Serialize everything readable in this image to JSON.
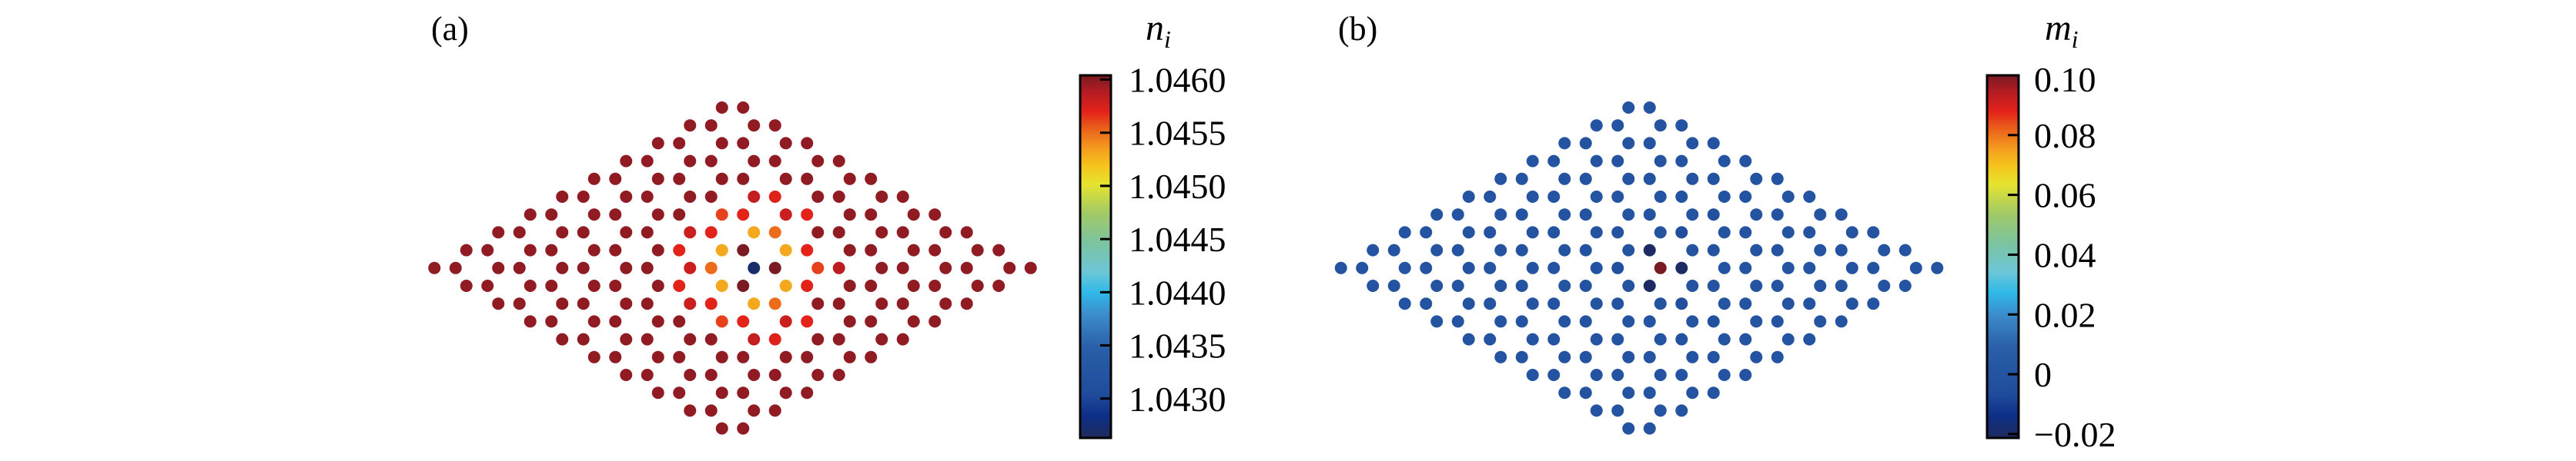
{
  "chart_data": [
    {
      "type": "heatmap",
      "panel_label": "(a)",
      "colorbar_title": {
        "base": "n",
        "sub": "i"
      },
      "lattice": "honeycomb",
      "rows": 19,
      "range": [
        1.04263,
        1.04604
      ],
      "ticks": [
        {
          "value": 1.046,
          "label": "1.0460"
        },
        {
          "value": 1.0455,
          "label": "1.0455"
        },
        {
          "value": 1.045,
          "label": "1.0450"
        },
        {
          "value": 1.0445,
          "label": "1.0445"
        },
        {
          "value": 1.044,
          "label": "1.0440"
        },
        {
          "value": 1.0435,
          "label": "1.0435"
        },
        {
          "value": 1.043,
          "label": "1.0430"
        }
      ],
      "default_value": 1.04598,
      "sites": [
        {
          "row": 9,
          "pair": 4,
          "side": 0,
          "value": 1.0458
        },
        {
          "row": 9,
          "pair": 4,
          "side": 1,
          "value": 1.0455
        },
        {
          "row": 9,
          "pair": 5,
          "side": 0,
          "value": 1.0427
        },
        {
          "row": 9,
          "pair": 5,
          "side": 1,
          "value": 1.0461
        },
        {
          "row": 9,
          "pair": 6,
          "side": 0,
          "value": 1.04562
        },
        {
          "row": 9,
          "pair": 6,
          "side": 1,
          "value": 1.04585
        },
        {
          "row": 8,
          "pair": 3,
          "side": 1,
          "value": 1.0457
        },
        {
          "row": 8,
          "pair": 4,
          "side": 0,
          "value": 1.0453
        },
        {
          "row": 8,
          "pair": 4,
          "side": 1,
          "value": 1.0461
        },
        {
          "row": 8,
          "pair": 5,
          "side": 0,
          "value": 1.0453
        },
        {
          "row": 8,
          "pair": 5,
          "side": 1,
          "value": 1.0457
        },
        {
          "row": 10,
          "pair": 3,
          "side": 1,
          "value": 1.0457
        },
        {
          "row": 10,
          "pair": 4,
          "side": 0,
          "value": 1.0453
        },
        {
          "row": 10,
          "pair": 4,
          "side": 1,
          "value": 1.0461
        },
        {
          "row": 10,
          "pair": 5,
          "side": 0,
          "value": 1.0453
        },
        {
          "row": 10,
          "pair": 5,
          "side": 1,
          "value": 1.0457
        },
        {
          "row": 7,
          "pair": 3,
          "side": 0,
          "value": 1.0458
        },
        {
          "row": 7,
          "pair": 3,
          "side": 1,
          "value": 1.0457
        },
        {
          "row": 7,
          "pair": 4,
          "side": 0,
          "value": 1.0453
        },
        {
          "row": 7,
          "pair": 4,
          "side": 1,
          "value": 1.0455
        },
        {
          "row": 11,
          "pair": 3,
          "side": 0,
          "value": 1.0458
        },
        {
          "row": 11,
          "pair": 3,
          "side": 1,
          "value": 1.0457
        },
        {
          "row": 11,
          "pair": 4,
          "side": 0,
          "value": 1.0453
        },
        {
          "row": 11,
          "pair": 4,
          "side": 1,
          "value": 1.0455
        },
        {
          "row": 6,
          "pair": 3,
          "side": 0,
          "value": 1.04562
        },
        {
          "row": 6,
          "pair": 3,
          "side": 1,
          "value": 1.0457
        },
        {
          "row": 6,
          "pair": 4,
          "side": 0,
          "value": 1.0458
        },
        {
          "row": 6,
          "pair": 4,
          "side": 1,
          "value": 1.0457
        },
        {
          "row": 12,
          "pair": 3,
          "side": 0,
          "value": 1.04562
        },
        {
          "row": 12,
          "pair": 3,
          "side": 1,
          "value": 1.0457
        },
        {
          "row": 12,
          "pair": 4,
          "side": 0,
          "value": 1.0458
        },
        {
          "row": 12,
          "pair": 4,
          "side": 1,
          "value": 1.0457
        },
        {
          "row": 5,
          "pair": 3,
          "side": 0,
          "value": 1.04582
        },
        {
          "row": 5,
          "pair": 3,
          "side": 1,
          "value": 1.04572
        },
        {
          "row": 13,
          "pair": 3,
          "side": 0,
          "value": 1.04582
        },
        {
          "row": 13,
          "pair": 3,
          "side": 1,
          "value": 1.04572
        }
      ]
    },
    {
      "type": "heatmap",
      "panel_label": "(b)",
      "colorbar_title": {
        "base": "m",
        "sub": "i"
      },
      "lattice": "honeycomb",
      "rows": 19,
      "range": [
        -0.0213,
        0.1
      ],
      "ticks": [
        {
          "value": 0.1,
          "label": "0.10"
        },
        {
          "value": 0.08,
          "label": "0.08"
        },
        {
          "value": 0.06,
          "label": "0.06"
        },
        {
          "value": 0.04,
          "label": "0.04"
        },
        {
          "value": 0.02,
          "label": "0.02"
        },
        {
          "value": 0.0,
          "label": "0"
        },
        {
          "value": -0.02,
          "label": "−0.02"
        }
      ],
      "default_value": 0.0,
      "sites": [
        {
          "row": 9,
          "pair": 4,
          "side": 1,
          "value": -0.004
        },
        {
          "row": 9,
          "pair": 5,
          "side": 0,
          "value": 0.1
        },
        {
          "row": 9,
          "pair": 5,
          "side": 1,
          "value": -0.02
        },
        {
          "row": 8,
          "pair": 3,
          "side": 1,
          "value": -0.002
        },
        {
          "row": 8,
          "pair": 4,
          "side": 1,
          "value": -0.02
        },
        {
          "row": 10,
          "pair": 3,
          "side": 1,
          "value": -0.002
        },
        {
          "row": 10,
          "pair": 4,
          "side": 1,
          "value": -0.02
        },
        {
          "row": 7,
          "pair": 4,
          "side": 1,
          "value": -0.004
        },
        {
          "row": 11,
          "pair": 4,
          "side": 1,
          "value": -0.004
        },
        {
          "row": 6,
          "pair": 4,
          "side": 1,
          "value": -0.003
        },
        {
          "row": 12,
          "pair": 4,
          "side": 1,
          "value": -0.003
        },
        {
          "row": 5,
          "pair": 3,
          "side": 1,
          "value": -0.002
        },
        {
          "row": 13,
          "pair": 3,
          "side": 1,
          "value": -0.002
        }
      ]
    }
  ],
  "colormap": [
    [
      0.0,
      "#1f2a5c"
    ],
    [
      0.06,
      "#0d2f86"
    ],
    [
      0.12,
      "#1f4c9c"
    ],
    [
      0.25,
      "#2a5fa8"
    ],
    [
      0.34,
      "#3c8ccc"
    ],
    [
      0.4,
      "#2fb9e8"
    ],
    [
      0.46,
      "#6ec6d6"
    ],
    [
      0.54,
      "#7cc39e"
    ],
    [
      0.62,
      "#a2ca64"
    ],
    [
      0.7,
      "#e6e430"
    ],
    [
      0.75,
      "#f6c41c"
    ],
    [
      0.8,
      "#f39a1e"
    ],
    [
      0.86,
      "#e9581a"
    ],
    [
      0.9,
      "#e3221a"
    ],
    [
      0.95,
      "#b81c22"
    ],
    [
      1.0,
      "#7a1a22"
    ]
  ]
}
